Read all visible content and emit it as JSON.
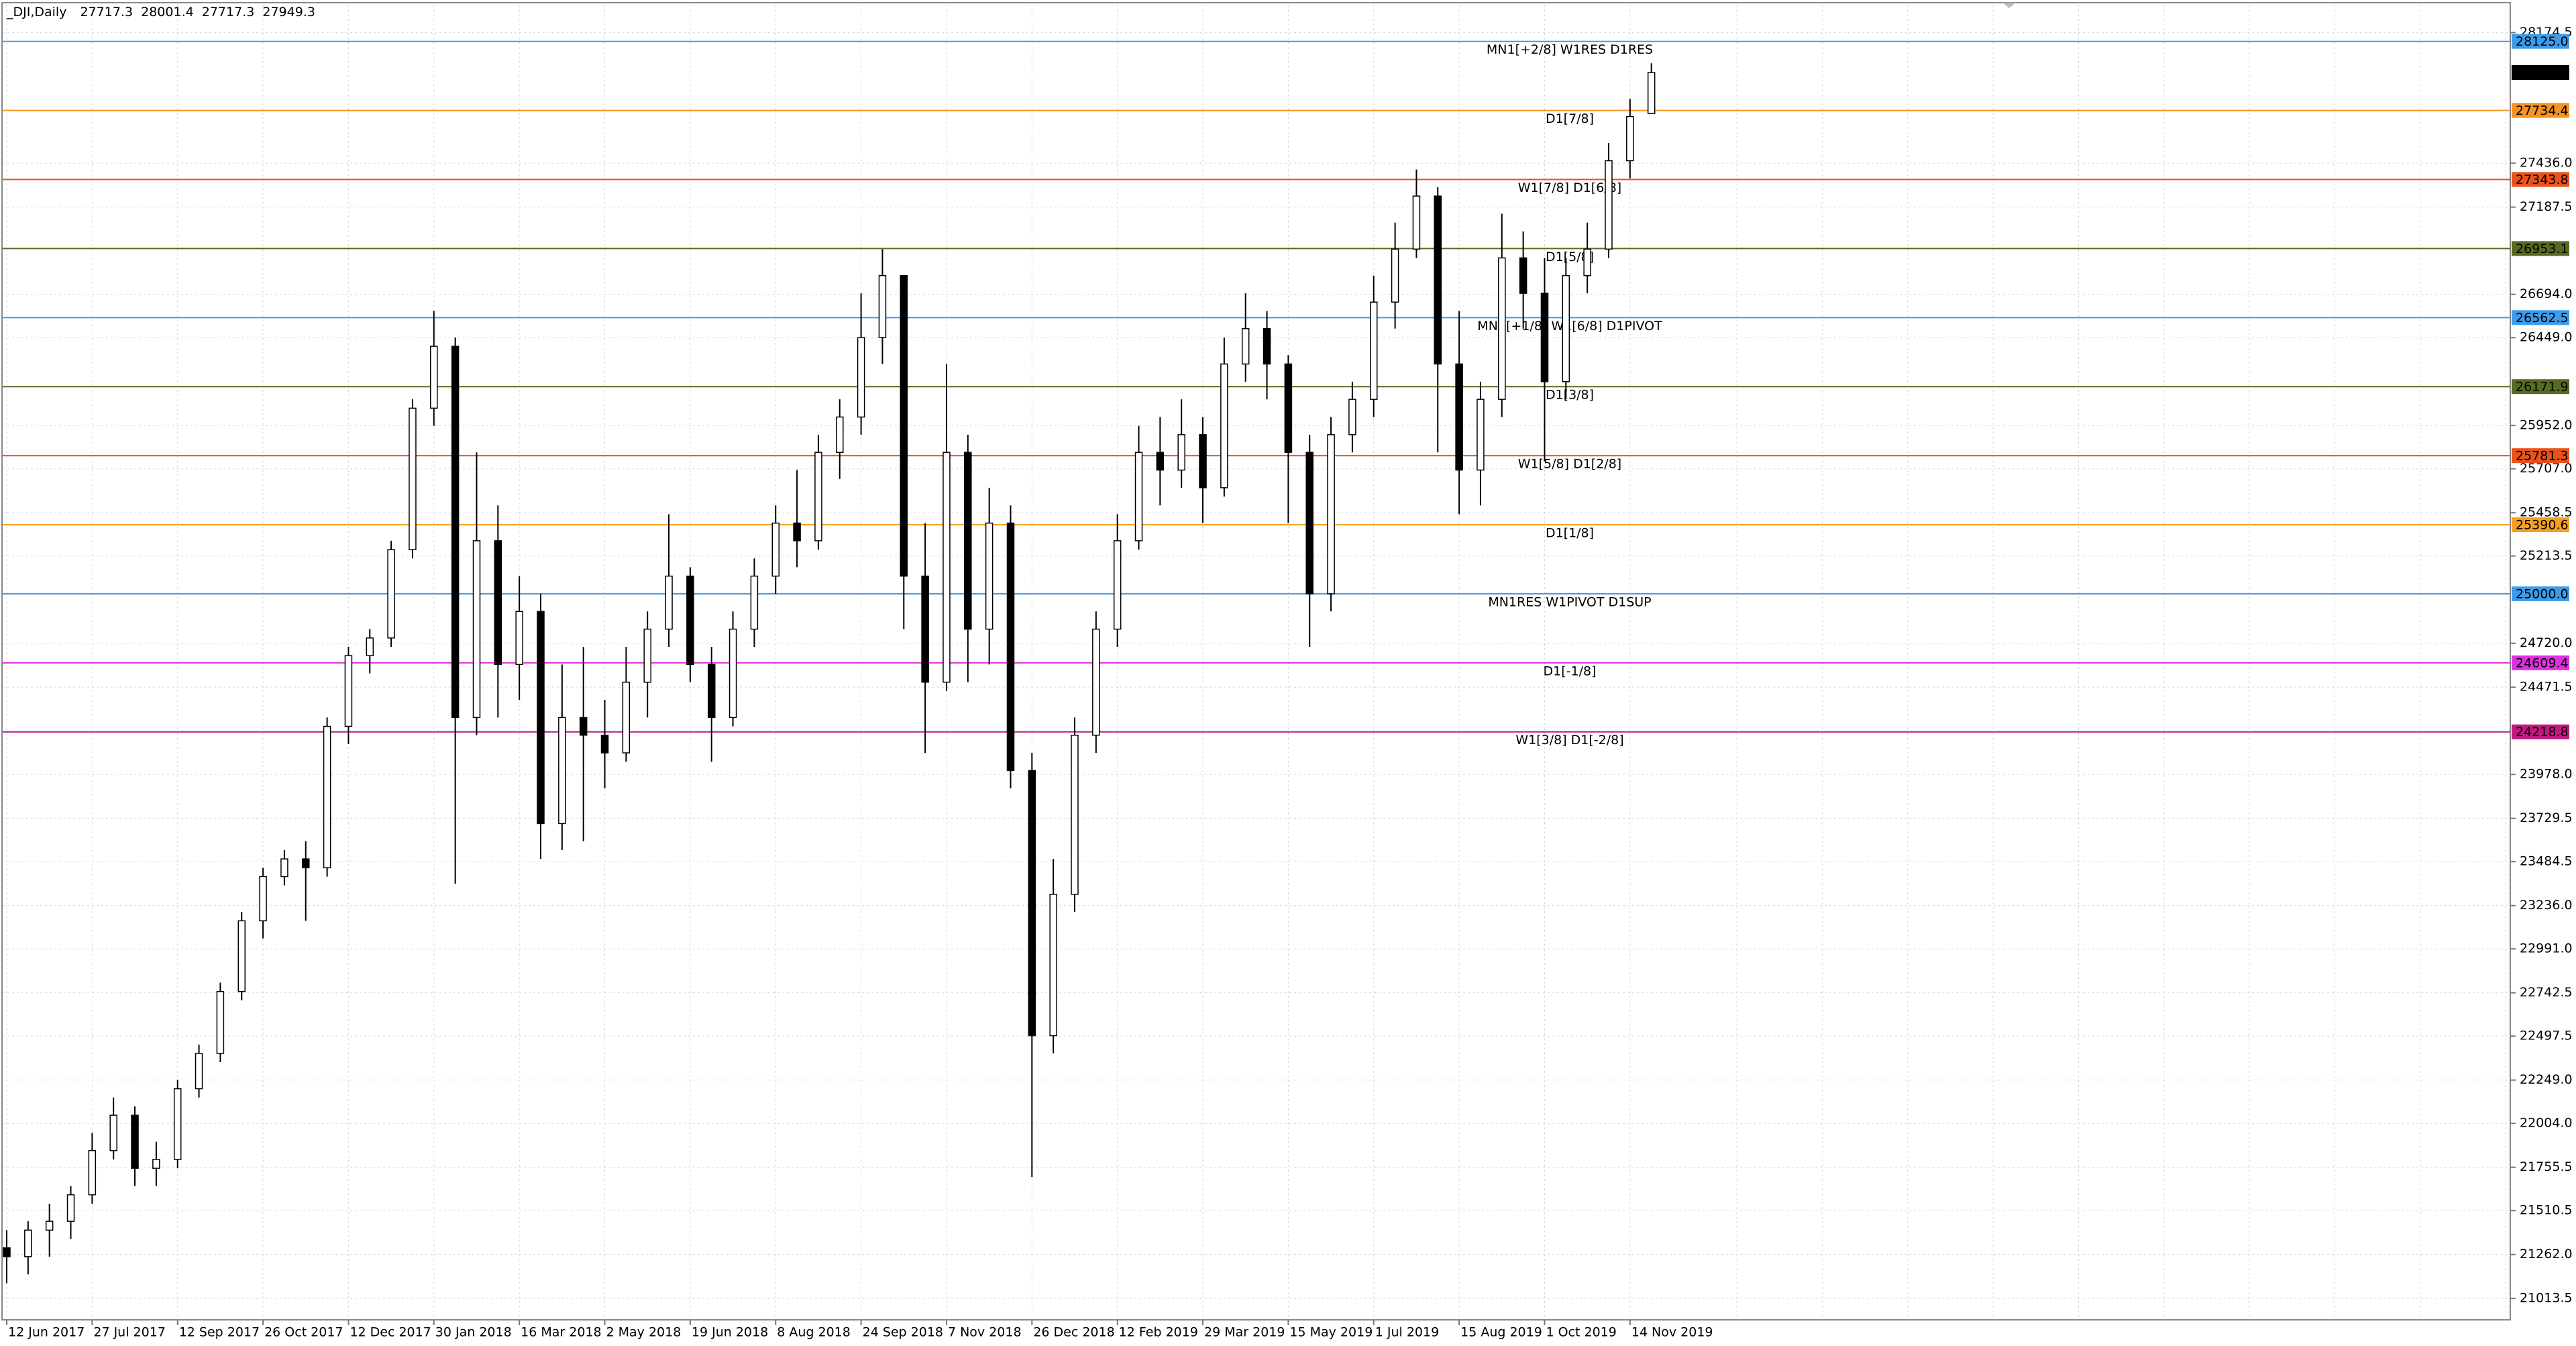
{
  "chart_data": {
    "type": "candlestick",
    "header": {
      "symbol": "_DJI,Daily",
      "open": 27717.3,
      "high": 28001.4,
      "low": 27717.3,
      "close": 27949.3
    },
    "categories": [
      "12 Jun 2017",
      null,
      null,
      null,
      "27 Jul 2017",
      null,
      null,
      null,
      "12 Sep 2017",
      null,
      null,
      null,
      "26 Oct 2017",
      null,
      null,
      null,
      "12 Dec 2017",
      null,
      null,
      null,
      "30 Jan 2018",
      null,
      null,
      null,
      "16 Mar 2018",
      null,
      null,
      null,
      "2 May 2018",
      null,
      null,
      null,
      "19 Jun 2018",
      null,
      null,
      null,
      "8 Aug 2018",
      null,
      null,
      null,
      "24 Sep 2018",
      null,
      null,
      null,
      "7 Nov 2018",
      null,
      null,
      null,
      "26 Dec 2018",
      null,
      null,
      null,
      "12 Feb 2019",
      null,
      null,
      null,
      "29 Mar 2019",
      null,
      null,
      null,
      "15 May 2019",
      null,
      null,
      null,
      "1 Jul 2019",
      null,
      null,
      null,
      "15 Aug 2019",
      null,
      null,
      null,
      "1 Oct 2019",
      null,
      null,
      null,
      "14 Nov 2019",
      null
    ],
    "open": [
      21300,
      21250,
      21400,
      21450,
      21600,
      21850,
      22050,
      21750,
      21800,
      22200,
      22400,
      22750,
      23150,
      23400,
      23500,
      23450,
      24250,
      24650,
      24750,
      25250,
      26050,
      26400,
      24300,
      25300,
      24600,
      24900,
      23700,
      24300,
      24200,
      24100,
      24500,
      24800,
      25100,
      24600,
      24300,
      24800,
      25100,
      25400,
      25300,
      25800,
      26000,
      26450,
      26800,
      25100,
      24500,
      25800,
      24800,
      25400,
      24000,
      22500,
      23300,
      24200,
      24800,
      25300,
      25800,
      25700,
      25900,
      25600,
      26300,
      26500,
      26300,
      25800,
      25000,
      25900,
      26100,
      26650,
      26950,
      27250,
      26300,
      25700,
      26100,
      26900,
      26700,
      26200,
      26800,
      26950,
      27450,
      27717.3
    ],
    "high": [
      21400,
      21450,
      21550,
      21650,
      21950,
      22150,
      22100,
      21900,
      22250,
      22450,
      22800,
      23200,
      23450,
      23550,
      23600,
      24300,
      24700,
      24800,
      25300,
      26100,
      26600,
      26450,
      25800,
      25500,
      25100,
      25000,
      24600,
      24700,
      24400,
      24700,
      24900,
      25450,
      25150,
      24700,
      24900,
      25200,
      25500,
      25700,
      25900,
      26100,
      26700,
      26950,
      26800,
      25400,
      26300,
      25900,
      25600,
      25500,
      24100,
      23500,
      24300,
      24900,
      25450,
      25950,
      26000,
      26100,
      26000,
      26450,
      26700,
      26600,
      26350,
      25900,
      26000,
      26200,
      26800,
      27100,
      27400,
      27300,
      26600,
      26200,
      27150,
      27050,
      26900,
      26900,
      27100,
      27550,
      27800,
      28001.4
    ],
    "low": [
      21100,
      21150,
      21250,
      21350,
      21550,
      21800,
      21650,
      21650,
      21750,
      22150,
      22350,
      22700,
      23050,
      23350,
      23150,
      23400,
      24150,
      24550,
      24700,
      25200,
      25950,
      23360,
      24200,
      24300,
      24400,
      23500,
      23550,
      23600,
      23900,
      24050,
      24300,
      24700,
      24500,
      24050,
      24250,
      24700,
      25000,
      25150,
      25250,
      25650,
      25900,
      26300,
      24800,
      24100,
      24450,
      24500,
      24600,
      23900,
      21700,
      22400,
      23200,
      24100,
      24700,
      25250,
      25500,
      25600,
      25400,
      25550,
      26200,
      26100,
      25400,
      24700,
      24900,
      25800,
      26000,
      26500,
      26900,
      25800,
      25450,
      25500,
      26000,
      26500,
      25750,
      26100,
      26700,
      26900,
      27350,
      27717.3
    ],
    "close": [
      21250,
      21400,
      21450,
      21600,
      21850,
      22050,
      21750,
      21800,
      22200,
      22400,
      22750,
      23150,
      23400,
      23500,
      23450,
      24250,
      24650,
      24750,
      25250,
      26050,
      26400,
      24300,
      25300,
      24600,
      24900,
      23700,
      24300,
      24200,
      24100,
      24500,
      24800,
      25100,
      24600,
      24300,
      24800,
      25100,
      25400,
      25300,
      25800,
      26000,
      26450,
      26800,
      25100,
      24500,
      25800,
      24800,
      25400,
      24000,
      22500,
      23300,
      24200,
      24800,
      25300,
      25800,
      25700,
      25900,
      25600,
      26300,
      26500,
      26300,
      25800,
      25000,
      25900,
      26100,
      26650,
      26950,
      27250,
      26300,
      25700,
      26100,
      26900,
      26700,
      26200,
      26800,
      26950,
      27450,
      27700,
      27949.3
    ],
    "ylim": [
      20892.6,
      28332.6
    ],
    "yticks": [
      28174.5,
      {
        "value": 27436,
        "label": "27436.0"
      },
      27187.5,
      {
        "value": 26694,
        "label": "26694.0"
      },
      {
        "value": 26449,
        "label": "26449.0"
      },
      {
        "value": 25952,
        "label": "25952.0"
      },
      {
        "value": 25707,
        "label": "25707.0"
      },
      25458.5,
      25213.5,
      {
        "value": 24720,
        "label": "24720.0"
      },
      24471.5,
      {
        "value": 23978,
        "label": "23978.0"
      },
      23729.5,
      23484.5,
      {
        "value": 23236,
        "label": "23236.0"
      },
      {
        "value": 22991,
        "label": "22991.0"
      },
      22742.5,
      22497.5,
      {
        "value": 22249,
        "label": "22249.0"
      },
      {
        "value": 22004,
        "label": "22004.0"
      },
      21755.5,
      21510.5,
      {
        "value": 21262,
        "label": "21262.0"
      },
      21013.5
    ],
    "grid": true,
    "up_color": "#ffffff",
    "down_color": "#000000",
    "levels": [
      {
        "text": "MN1[+2/8] W1RES D1RES",
        "price": {
          "value": 28125,
          "label": "28125.0"
        },
        "color": "#3d9be9"
      },
      {
        "text": "D1[7/8]",
        "price": 27734.4,
        "color": "#f7931e"
      },
      {
        "text": "W1[7/8] D1[6/8]",
        "price": 27343.8,
        "color": "#e8521c"
      },
      {
        "text": "D1[5/8]",
        "price": 26953.1,
        "color": "#566b1f"
      },
      {
        "text": "MN1[+1/8] W1[6/8] D1PIVOT",
        "price": 26562.5,
        "color": "#3d9be9"
      },
      {
        "text": "D1[3/8]",
        "price": 26171.9,
        "color": "#566b1f"
      },
      {
        "text": "W1[5/8] D1[2/8]",
        "price": 25781.3,
        "color": "#e8521c"
      },
      {
        "text": "D1[1/8]",
        "price": 25390.6,
        "color": "#f7a01e"
      },
      {
        "text": "MN1RES W1PIVOT D1SUP",
        "price": {
          "value": 25000,
          "label": "25000.0"
        },
        "color": "#3d9be9"
      },
      {
        "text": "D1[-1/8]",
        "price": 24609.4,
        "color": "#e030e0"
      },
      {
        "text": "W1[3/8] D1[-2/8]",
        "price": 24218.8,
        "color": "#c0187f"
      }
    ],
    "last_price": 27949.3
  }
}
